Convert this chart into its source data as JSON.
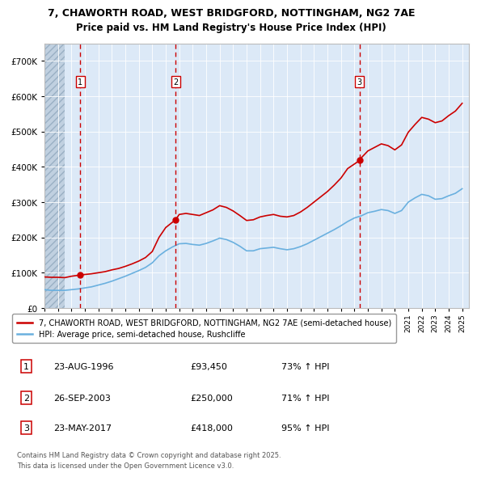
{
  "title_line1": "7, CHAWORTH ROAD, WEST BRIDGFORD, NOTTINGHAM, NG2 7AE",
  "title_line2": "Price paid vs. HM Land Registry's House Price Index (HPI)",
  "ylim": [
    0,
    750000
  ],
  "yticks": [
    0,
    100000,
    200000,
    300000,
    400000,
    500000,
    600000,
    700000
  ],
  "background_color": "#ffffff",
  "plot_bg_color": "#dce9f7",
  "hatch_region_end_year": 1995.5,
  "grid_color": "#ffffff",
  "sale_color": "#cc0000",
  "hpi_color": "#6ab0df",
  "dashed_line_color": "#cc0000",
  "legend_sale_label": "7, CHAWORTH ROAD, WEST BRIDGFORD, NOTTINGHAM, NG2 7AE (semi-detached house)",
  "legend_hpi_label": "HPI: Average price, semi-detached house, Rushcliffe",
  "transactions": [
    {
      "num": 1,
      "date": "23-AUG-1996",
      "price": 93450,
      "hpi_change": "73% ↑ HPI",
      "year": 1996.65
    },
    {
      "num": 2,
      "date": "26-SEP-2003",
      "price": 250000,
      "hpi_change": "71% ↑ HPI",
      "year": 2003.73
    },
    {
      "num": 3,
      "date": "23-MAY-2017",
      "price": 418000,
      "hpi_change": "95% ↑ HPI",
      "year": 2017.39
    }
  ],
  "footer_text": "Contains HM Land Registry data © Crown copyright and database right 2025.\nThis data is licensed under the Open Government Licence v3.0.",
  "sale_years": [
    1994.0,
    1994.5,
    1995.0,
    1995.5,
    1996.0,
    1996.65,
    1997.0,
    1997.5,
    1998.0,
    1998.5,
    1999.0,
    1999.5,
    2000.0,
    2000.5,
    2001.0,
    2001.5,
    2002.0,
    2002.5,
    2003.0,
    2003.73,
    2004.0,
    2004.5,
    2005.0,
    2005.5,
    2006.0,
    2006.5,
    2007.0,
    2007.5,
    2008.0,
    2008.5,
    2009.0,
    2009.5,
    2010.0,
    2010.5,
    2011.0,
    2011.5,
    2012.0,
    2012.5,
    2013.0,
    2013.5,
    2014.0,
    2014.5,
    2015.0,
    2015.5,
    2016.0,
    2016.5,
    2017.39,
    2017.5,
    2018.0,
    2018.5,
    2019.0,
    2019.5,
    2020.0,
    2020.5,
    2021.0,
    2021.5,
    2022.0,
    2022.5,
    2023.0,
    2023.5,
    2024.0,
    2024.5,
    2025.0
  ],
  "sale_prices": [
    88000,
    87000,
    87000,
    86000,
    90000,
    93450,
    95000,
    97000,
    100000,
    103000,
    108000,
    112000,
    118000,
    125000,
    133000,
    143000,
    160000,
    200000,
    228000,
    250000,
    265000,
    268000,
    265000,
    262000,
    270000,
    278000,
    290000,
    285000,
    275000,
    262000,
    248000,
    250000,
    258000,
    262000,
    265000,
    260000,
    258000,
    262000,
    272000,
    285000,
    300000,
    315000,
    330000,
    348000,
    368000,
    395000,
    418000,
    425000,
    445000,
    455000,
    465000,
    460000,
    448000,
    462000,
    498000,
    520000,
    540000,
    535000,
    525000,
    530000,
    545000,
    558000,
    580000
  ],
  "hpi_years": [
    1994.0,
    1994.5,
    1995.0,
    1995.5,
    1996.0,
    1996.5,
    1997.0,
    1997.5,
    1998.0,
    1998.5,
    1999.0,
    1999.5,
    2000.0,
    2000.5,
    2001.0,
    2001.5,
    2002.0,
    2002.5,
    2003.0,
    2003.5,
    2004.0,
    2004.5,
    2005.0,
    2005.5,
    2006.0,
    2006.5,
    2007.0,
    2007.5,
    2008.0,
    2008.5,
    2009.0,
    2009.5,
    2010.0,
    2010.5,
    2011.0,
    2011.5,
    2012.0,
    2012.5,
    2013.0,
    2013.5,
    2014.0,
    2014.5,
    2015.0,
    2015.5,
    2016.0,
    2016.5,
    2017.0,
    2017.5,
    2018.0,
    2018.5,
    2019.0,
    2019.5,
    2020.0,
    2020.5,
    2021.0,
    2021.5,
    2022.0,
    2022.5,
    2023.0,
    2023.5,
    2024.0,
    2024.5,
    2025.0
  ],
  "hpi_prices": [
    52000,
    50000,
    50000,
    50000,
    52000,
    54000,
    57000,
    60000,
    65000,
    70000,
    76000,
    83000,
    90000,
    98000,
    106000,
    115000,
    128000,
    148000,
    162000,
    173000,
    182000,
    183000,
    180000,
    178000,
    183000,
    190000,
    198000,
    194000,
    186000,
    175000,
    162000,
    162000,
    168000,
    170000,
    172000,
    168000,
    165000,
    168000,
    174000,
    182000,
    192000,
    202000,
    212000,
    222000,
    233000,
    245000,
    255000,
    261000,
    270000,
    274000,
    279000,
    276000,
    268000,
    276000,
    300000,
    312000,
    322000,
    318000,
    308000,
    310000,
    318000,
    325000,
    338000
  ],
  "xmin": 1994.0,
  "xmax": 2025.5,
  "xtick_start": 1994,
  "xtick_end": 2026
}
